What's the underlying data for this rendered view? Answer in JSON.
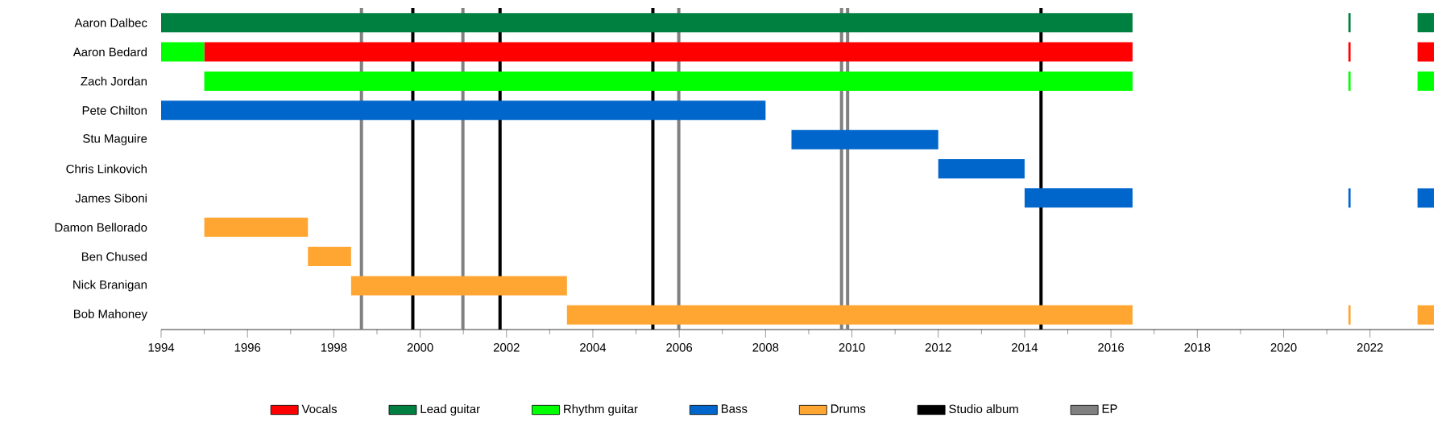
{
  "chart_data": {
    "type": "bar",
    "orientation": "horizontal",
    "legend": "bottom",
    "categories": [
      "Aaron Dalbec",
      "Aaron Bedard",
      "Zach Jordan",
      "Pete Chilton",
      "Stu Maguire",
      "Chris Linkovich",
      "James Siboni",
      "Damon Bellorado",
      "Ben Chused",
      "Nick Branigan",
      "Bob Mahoney"
    ],
    "xlim": [
      1994,
      2023.48
    ],
    "xticks": [
      1994,
      1996,
      1998,
      2000,
      2002,
      2004,
      2006,
      2008,
      2010,
      2012,
      2014,
      2016,
      2018,
      2020,
      2022
    ],
    "series": [
      {
        "name": "Vocals",
        "color": "#ff0000",
        "base": [
          null,
          1995,
          null,
          null,
          null,
          null,
          null,
          null,
          null,
          null,
          null
        ],
        "values": [
          null,
          21.5,
          null,
          null,
          null,
          null,
          null,
          null,
          null,
          null,
          null
        ]
      },
      {
        "color": "#ff0000",
        "base": [
          null,
          2021.5,
          null,
          null,
          null,
          null,
          null,
          null,
          null,
          null,
          null
        ],
        "values": [
          null,
          0.05,
          null,
          null,
          null,
          null,
          null,
          null,
          null,
          null,
          null
        ]
      },
      {
        "color": "#ff0000",
        "base": [
          null,
          2023.1,
          null,
          null,
          null,
          null,
          null,
          null,
          null,
          null,
          null
        ],
        "values": [
          null,
          0.38,
          null,
          null,
          null,
          null,
          null,
          null,
          null,
          null,
          null
        ]
      },
      {
        "name": "Lead guitar",
        "color": "#008040",
        "base": [
          1994,
          null,
          null,
          null,
          null,
          null,
          null,
          null,
          null,
          null,
          null
        ],
        "values": [
          22.5,
          null,
          null,
          null,
          null,
          null,
          null,
          null,
          null,
          null,
          null
        ]
      },
      {
        "color": "#008040",
        "base": [
          2021.5,
          null,
          null,
          null,
          null,
          null,
          null,
          null,
          null,
          null,
          null
        ],
        "values": [
          0.05,
          null,
          null,
          null,
          null,
          null,
          null,
          null,
          null,
          null,
          null
        ]
      },
      {
        "color": "#008040",
        "base": [
          2023.1,
          null,
          null,
          null,
          null,
          null,
          null,
          null,
          null,
          null,
          null
        ],
        "values": [
          0.38,
          null,
          null,
          null,
          null,
          null,
          null,
          null,
          null,
          null,
          null
        ]
      },
      {
        "name": "Rhythm guitar",
        "color": "#00ff00",
        "base": [
          null,
          1994,
          1995,
          null,
          null,
          null,
          null,
          null,
          null,
          null,
          null
        ],
        "values": [
          null,
          1,
          21.5,
          null,
          null,
          null,
          null,
          null,
          null,
          null,
          null
        ]
      },
      {
        "color": "#00ff00",
        "base": [
          null,
          null,
          2021.5,
          null,
          null,
          null,
          null,
          null,
          null,
          null,
          null
        ],
        "values": [
          null,
          null,
          0.05,
          null,
          null,
          null,
          null,
          null,
          null,
          null,
          null
        ]
      },
      {
        "color": "#00ff00",
        "base": [
          null,
          null,
          2023.1,
          null,
          null,
          null,
          null,
          null,
          null,
          null,
          null
        ],
        "values": [
          null,
          null,
          0.38,
          null,
          null,
          null,
          null,
          null,
          null,
          null,
          null
        ]
      },
      {
        "name": "Bass",
        "color": "#0066cc",
        "base": [
          null,
          null,
          null,
          1994,
          2008.6,
          2012,
          2014,
          null,
          null,
          null,
          null
        ],
        "values": [
          null,
          null,
          null,
          14,
          3.4,
          2,
          2.5,
          null,
          null,
          null,
          null
        ]
      },
      {
        "color": "#0066cc",
        "base": [
          null,
          null,
          null,
          null,
          null,
          null,
          2021.5,
          null,
          null,
          null,
          null
        ],
        "values": [
          null,
          null,
          null,
          null,
          null,
          null,
          0.05,
          null,
          null,
          null,
          null
        ]
      },
      {
        "color": "#0066cc",
        "base": [
          null,
          null,
          null,
          null,
          null,
          null,
          2023.1,
          null,
          null,
          null,
          null
        ],
        "values": [
          null,
          null,
          null,
          null,
          null,
          null,
          0.38,
          null,
          null,
          null,
          null
        ]
      },
      {
        "name": "Drums",
        "color": "#ffa632",
        "base": [
          null,
          null,
          null,
          null,
          null,
          null,
          null,
          1995,
          1997.4,
          1998.4,
          2003.4
        ],
        "values": [
          null,
          null,
          null,
          null,
          null,
          null,
          null,
          2.4,
          1,
          5,
          13.1
        ]
      },
      {
        "color": "#ffa632",
        "base": [
          null,
          null,
          null,
          null,
          null,
          null,
          null,
          null,
          null,
          null,
          2021.5
        ],
        "values": [
          null,
          null,
          null,
          null,
          null,
          null,
          null,
          null,
          null,
          null,
          0.05
        ]
      },
      {
        "color": "#ffa632",
        "base": [
          null,
          null,
          null,
          null,
          null,
          null,
          null,
          null,
          null,
          null,
          2023.1
        ],
        "values": [
          null,
          null,
          null,
          null,
          null,
          null,
          null,
          null,
          null,
          null,
          0.38
        ]
      }
    ],
    "ref_lines": [
      {
        "axis": "x",
        "value": 1999.83,
        "color": "#000000",
        "label": "Studio album"
      },
      {
        "axis": "x",
        "value": 2001.85,
        "color": "#000000"
      },
      {
        "axis": "x",
        "value": 2005.39,
        "color": "#000000"
      },
      {
        "axis": "x",
        "value": 2014.38,
        "color": "#000000"
      },
      {
        "axis": "x",
        "value": 1998.64,
        "color": "#808080",
        "label": "EP"
      },
      {
        "axis": "x",
        "value": 2000.99,
        "color": "#808080"
      },
      {
        "axis": "x",
        "value": 2005.99,
        "color": "#808080"
      },
      {
        "axis": "x",
        "value": 2009.76,
        "color": "#808080"
      },
      {
        "axis": "x",
        "value": 2009.9,
        "color": "#808080"
      }
    ]
  }
}
